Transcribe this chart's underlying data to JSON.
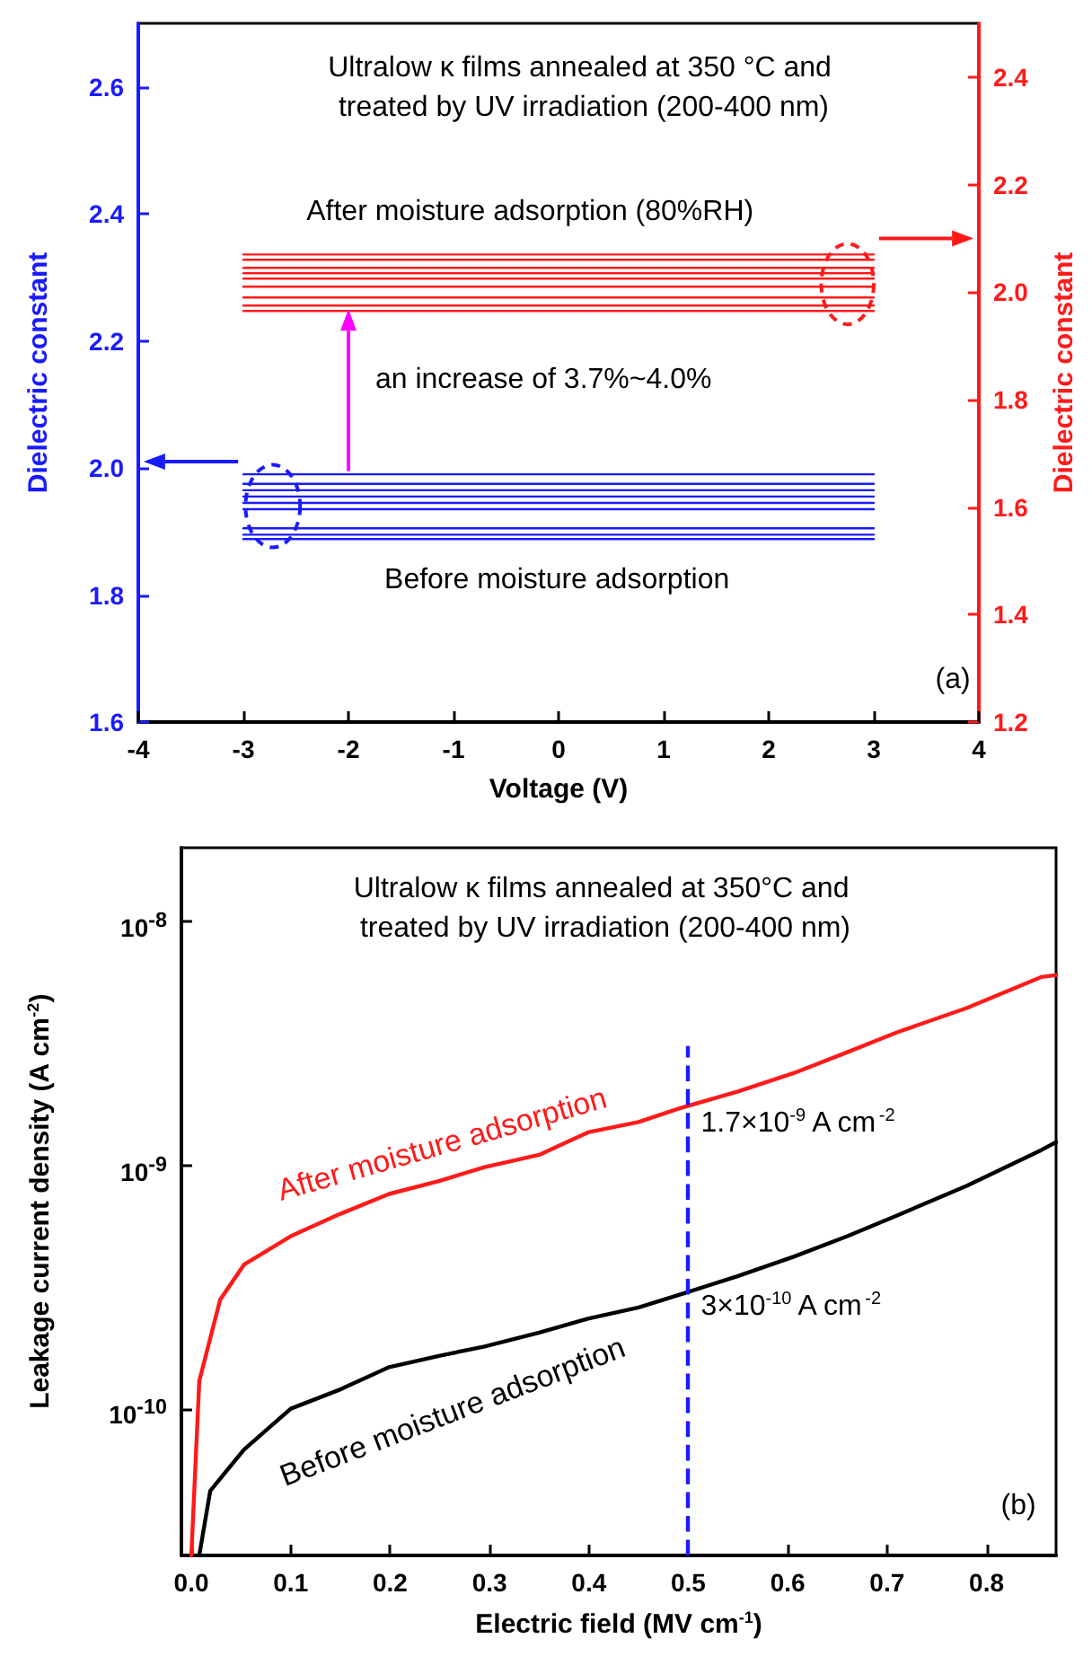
{
  "chart_data": [
    {
      "type": "line",
      "title": "Ultralow κ films annealed at 350 °C and treated by UV irradiation (200-400 nm)",
      "xlabel": "Voltage (V)",
      "ylabel": "Dielectric constant",
      "y2label": "Dielectric constant",
      "annotations": [
        "After moisture adsorption (80%RH)",
        "an increase of 3.7%~4.0%",
        "Before moisture adsorption",
        "(a)"
      ],
      "x": [
        -3,
        3
      ],
      "series": [
        {
          "color": "#1a1aff",
          "values": [
            1.99,
            1.99
          ]
        },
        {
          "color": "#1a1aff",
          "values": [
            1.975,
            1.975
          ]
        },
        {
          "color": "#1a1aff",
          "values": [
            1.965,
            1.965
          ]
        },
        {
          "color": "#1a1aff",
          "values": [
            1.955,
            1.955
          ]
        },
        {
          "color": "#1a1aff",
          "values": [
            1.945,
            1.945
          ]
        },
        {
          "color": "#1a1aff",
          "values": [
            1.935,
            1.935
          ]
        },
        {
          "color": "#1a1aff",
          "values": [
            1.905,
            1.905
          ]
        },
        {
          "color": "#1a1aff",
          "values": [
            1.895,
            1.895
          ]
        },
        {
          "color": "#1a1aff",
          "values": [
            1.888,
            1.888
          ]
        },
        {
          "color": "#ff1a1a",
          "axis": "y2",
          "values": [
            2.07,
            2.07
          ]
        },
        {
          "color": "#ff1a1a",
          "axis": "y2",
          "values": [
            2.06,
            2.06
          ]
        },
        {
          "color": "#ff1a1a",
          "axis": "y2",
          "values": [
            2.045,
            2.045
          ]
        },
        {
          "color": "#ff1a1a",
          "axis": "y2",
          "values": [
            2.035,
            2.035
          ]
        },
        {
          "color": "#ff1a1a",
          "axis": "y2",
          "values": [
            2.025,
            2.025
          ]
        },
        {
          "color": "#ff1a1a",
          "axis": "y2",
          "values": [
            2.01,
            2.01
          ]
        },
        {
          "color": "#ff1a1a",
          "axis": "y2",
          "values": [
            1.99,
            1.99
          ]
        },
        {
          "color": "#ff1a1a",
          "axis": "y2",
          "values": [
            1.975,
            1.975
          ]
        },
        {
          "color": "#ff1a1a",
          "axis": "y2",
          "values": [
            1.965,
            1.965
          ]
        }
      ],
      "xlim": [
        -4,
        4
      ],
      "xticks": [
        -4,
        -3,
        -2,
        -1,
        0,
        1,
        2,
        3,
        4
      ],
      "ylim": [
        1.6,
        2.7
      ],
      "yticks": [
        {
          "value": 1.6,
          "label": "1.6"
        },
        {
          "value": 1.8,
          "label": "1.8"
        },
        {
          "value": 2.0,
          "label": "2.0"
        },
        {
          "value": 2.2,
          "label": "2.2"
        },
        {
          "value": 2.4,
          "label": "2.4"
        },
        {
          "value": 2.6,
          "label": "2.6"
        }
      ],
      "y2lim": [
        1.2,
        2.5
      ],
      "y2ticks": [
        {
          "value": 1.2,
          "label": "1.2"
        },
        {
          "value": 1.4,
          "label": "1.4"
        },
        {
          "value": 1.6,
          "label": "1.6"
        },
        {
          "value": 1.8,
          "label": "1.8"
        },
        {
          "value": 2.0,
          "label": "2.0"
        },
        {
          "value": 2.2,
          "label": "2.2"
        },
        {
          "value": 2.4,
          "label": "2.4"
        }
      ],
      "grid": false,
      "legend": false,
      "marker": "none",
      "line_style": "solid"
    },
    {
      "type": "line",
      "title": "Ultralow κ films annealed at 350°C and treated by UV irradiation (200-400 nm)",
      "xlabel": "Electric field (MV cm$^{-1}$)",
      "ylabel": "Leakage current density (A cm$^{-2}$)",
      "annotations": [
        "(b)",
        {
          "text": "1.7×10$^{-9}$ A cm$^{-2}$",
          "x": 0.5,
          "y": 1.7e-09
        },
        {
          "text": "3×10$^{-10}$ A cm$^{-2}$",
          "x": 0.5,
          "y": 3e-10
        }
      ],
      "series": [
        {
          "name": "After moisture adsorption",
          "color": "#ff1a1a",
          "x": [
            0,
            0.008,
            0.029,
            0.053,
            0.1,
            0.15,
            0.199,
            0.25,
            0.295,
            0.35,
            0.399,
            0.45,
            0.492,
            0.55,
            0.606,
            0.66,
            0.71,
            0.78,
            0.855,
            0.87
          ],
          "values": [
            2.5e-11,
            1.3e-10,
            2.8e-10,
            3.9e-10,
            5.1e-10,
            6.3e-10,
            7.6e-10,
            8.6e-10,
            9.8e-10,
            1.1e-09,
            1.36e-09,
            1.5e-09,
            1.71e-09,
            2e-09,
            2.38e-09,
            2.9e-09,
            3.5e-09,
            4.4e-09,
            5.9e-09,
            6e-09
          ]
        },
        {
          "name": "Before moisture adsorption",
          "color": "#000000",
          "x": [
            0.008,
            0.019,
            0.053,
            0.1,
            0.15,
            0.199,
            0.25,
            0.295,
            0.35,
            0.399,
            0.45,
            0.492,
            0.55,
            0.606,
            0.66,
            0.71,
            0.78,
            0.855,
            0.87
          ],
          "values": [
            2.5e-11,
            4.6e-11,
            6.8e-11,
            1e-10,
            1.2e-10,
            1.48e-10,
            1.65e-10,
            1.8e-10,
            2.05e-10,
            2.34e-10,
            2.6e-10,
            2.94e-10,
            3.5e-10,
            4.2e-10,
            5.1e-10,
            6.2e-10,
            8.2e-10,
            1.15e-09,
            1.24e-09
          ]
        }
      ],
      "xlim": [
        -0.01,
        0.87
      ],
      "xticks": [
        {
          "value": 0,
          "label": "0.0"
        },
        0.1,
        0.2,
        0.3,
        0.4,
        0.5,
        0.6,
        0.7,
        0.8
      ],
      "ylim": [
        2.5e-11,
        2e-08
      ],
      "yticks": [
        {
          "value": 1e-10,
          "label": "10$^{-10}$"
        },
        {
          "value": 1e-09,
          "label": "10$^{-9}$"
        },
        {
          "value": 1e-08,
          "label": "10$^{-8}$"
        }
      ],
      "log": "y",
      "ref_lines": [
        {
          "axis": "x",
          "value": 0.5,
          "color": "#1a1aff",
          "line_style": "dashed"
        }
      ],
      "grid": false,
      "legend": false,
      "marker": "none",
      "line_style": "solid"
    }
  ]
}
